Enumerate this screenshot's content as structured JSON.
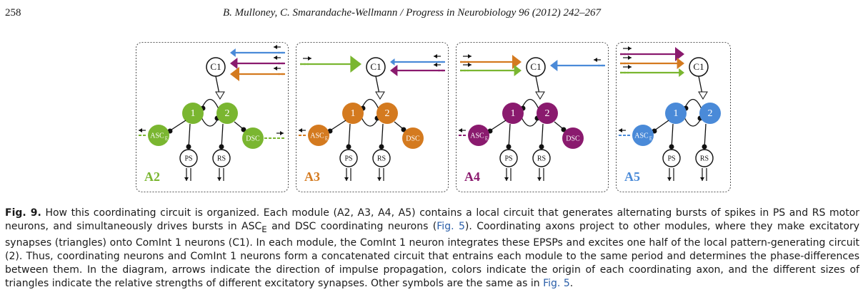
{
  "header": {
    "page_number": "258",
    "running_title": "B. Mulloney, C. Smarandache-Wellmann / Progress in Neurobiology 96 (2012) 242–267"
  },
  "colors": {
    "A2": "#7ab630",
    "A3": "#d47a1f",
    "A4": "#8a1a6e",
    "A5": "#4a8ad8"
  },
  "figure": {
    "modules": [
      {
        "id": "A2",
        "label": "A2",
        "color": "#7ab630"
      },
      {
        "id": "A3",
        "label": "A3",
        "color": "#d47a1f"
      },
      {
        "id": "A4",
        "label": "A4",
        "color": "#8a1a6e"
      },
      {
        "id": "A5",
        "label": "A5",
        "color": "#4a8ad8"
      }
    ],
    "neuron_labels": {
      "c1": "C1",
      "n1": "1",
      "n2": "2",
      "asc_main": "ASC",
      "asc_sub": "E",
      "dsc": "DSC",
      "ps": "PS",
      "rs": "RS"
    }
  },
  "caption": {
    "label": "Fig. 9.",
    "s1": " How this coordinating circuit is organized. Each module (A2, A3, A4, A5) contains a local circuit that generates alternating bursts of spikes in PS and RS motor neurons, and simultaneously drives bursts in ASC",
    "sub_e": "E",
    "s2": " and DSC coordinating neurons (",
    "ref1": "Fig. 5",
    "s3": "). Coordinating axons project to other modules, where they make excitatory synapses (triangles) onto ComInt 1 neurons (C1). In each module, the ComInt 1 neuron integrates these EPSPs and excites one half of the local pattern-generating circuit (2). Thus, coordinating neurons and ComInt 1 neurons form a concatenated circuit that entrains each module to the same period and determines the phase-differences between them. In the diagram, arrows indicate the direction of impulse propagation, colors indicate the origin of each coordinating axon, and the different sizes of triangles indicate the relative strengths of different excitatory synapses. Other symbols are the same as in ",
    "ref2": "Fig. 5",
    "s4": "."
  }
}
